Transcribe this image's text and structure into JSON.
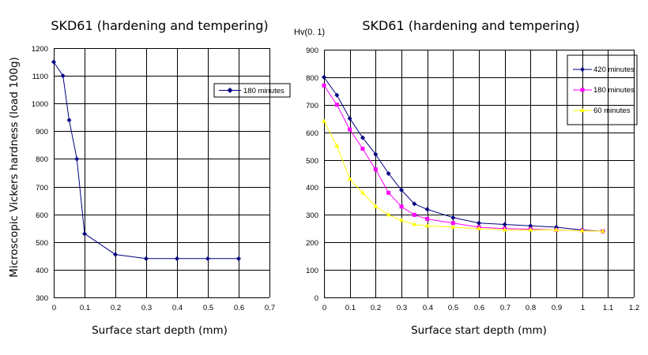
{
  "chart_data": [
    {
      "type": "line",
      "title": "SKD61 (hardening and tempering)",
      "xlabel": "Surface start depth (mm)",
      "ylabel": "Microscopic Vickers hardness (load 100g)",
      "xlim": [
        0,
        0.7
      ],
      "ylim": [
        300,
        1200
      ],
      "xticks": [
        "0",
        "0.1",
        "0.2",
        "0.3",
        "0.4",
        "0.5",
        "0.6",
        "0.7"
      ],
      "yticks": [
        "300",
        "400",
        "500",
        "600",
        "700",
        "800",
        "900",
        "1000",
        "1100",
        "1200"
      ],
      "grid": true,
      "legend_position": "right",
      "series": [
        {
          "name": "180 minutes",
          "color": "#000080",
          "marker": "diamond",
          "x": [
            0,
            0.03,
            0.05,
            0.075,
            0.1,
            0.2,
            0.3,
            0.4,
            0.5,
            0.6
          ],
          "y": [
            1150,
            1100,
            940,
            800,
            530,
            455,
            440,
            440,
            440,
            440
          ]
        }
      ]
    },
    {
      "type": "line",
      "title": "SKD61 (hardening and tempering)",
      "unit_label": "Hv(0. 1)",
      "xlabel": "Surface start depth (mm)",
      "ylabel": "",
      "xlim": [
        0,
        1.2
      ],
      "ylim": [
        0,
        900
      ],
      "xticks": [
        "0",
        "0.1",
        "0.2",
        "0.3",
        "0.4",
        "0.5",
        "0.6",
        "0.7",
        "0.8",
        "0.9",
        "1",
        "1.1",
        "1.2"
      ],
      "yticks": [
        "0",
        "100",
        "200",
        "300",
        "400",
        "500",
        "600",
        "700",
        "800",
        "900"
      ],
      "grid": true,
      "legend_position": "top-right",
      "series": [
        {
          "name": "420 minutes",
          "color": "#000080",
          "marker": "diamond",
          "x": [
            0,
            0.05,
            0.1,
            0.15,
            0.2,
            0.25,
            0.3,
            0.35,
            0.4,
            0.5,
            0.6,
            0.7,
            0.8,
            0.9,
            1.0,
            1.08
          ],
          "y": [
            800,
            735,
            650,
            580,
            520,
            450,
            390,
            340,
            320,
            290,
            270,
            265,
            260,
            255,
            245,
            240
          ]
        },
        {
          "name": "180 minutes",
          "color": "#ff00ff",
          "marker": "square",
          "x": [
            0,
            0.05,
            0.1,
            0.15,
            0.2,
            0.25,
            0.3,
            0.35,
            0.4,
            0.5,
            0.6,
            0.7,
            0.8,
            0.9,
            1.0,
            1.08
          ],
          "y": [
            770,
            700,
            610,
            540,
            465,
            380,
            330,
            300,
            285,
            270,
            255,
            250,
            248,
            245,
            243,
            240
          ]
        },
        {
          "name": "60 minutes",
          "color": "#ffff00",
          "marker": "triangle",
          "x": [
            0,
            0.05,
            0.1,
            0.15,
            0.2,
            0.25,
            0.3,
            0.35,
            0.4,
            0.5,
            0.6,
            0.7,
            0.8,
            0.9,
            1.0,
            1.08
          ],
          "y": [
            640,
            550,
            430,
            380,
            330,
            300,
            280,
            265,
            260,
            255,
            250,
            245,
            245,
            245,
            242,
            240
          ]
        }
      ]
    }
  ]
}
